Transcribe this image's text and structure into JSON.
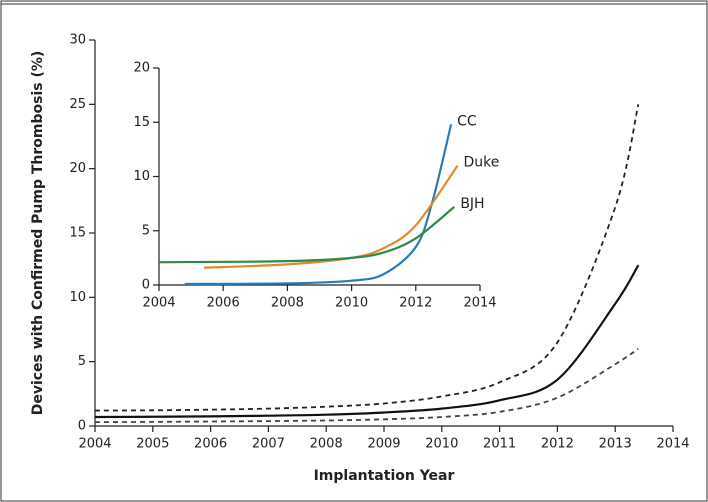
{
  "chart_data": [
    {
      "type": "line",
      "xlabel": "Implantation Year",
      "ylabel": "Devices with Confirmed Pump Thrombosis (%)",
      "xlim": [
        2004,
        2014
      ],
      "xticks": [
        2004,
        2005,
        2006,
        2007,
        2008,
        2009,
        2010,
        2011,
        2012,
        2013,
        2014
      ],
      "ylim": [
        0,
        30
      ],
      "yticks": [
        0,
        5,
        10,
        15,
        20,
        25,
        30
      ],
      "x": [
        2004,
        2005,
        2006,
        2007,
        2008,
        2009,
        2010,
        2011,
        2012,
        2013,
        2013.4
      ],
      "series": [
        {
          "color": "#111111",
          "dashed": false,
          "values": [
            0.7,
            0.72,
            0.75,
            0.8,
            0.88,
            1.05,
            1.35,
            2.0,
            3.6,
            9.5,
            12.5
          ]
        },
        {
          "color": "#222222",
          "dashed": true,
          "values": [
            1.2,
            1.22,
            1.27,
            1.35,
            1.5,
            1.75,
            2.3,
            3.4,
            6.5,
            17,
            25
          ]
        },
        {
          "color": "#444444",
          "dashed": true,
          "values": [
            0.3,
            0.32,
            0.35,
            0.38,
            0.43,
            0.52,
            0.7,
            1.1,
            2.2,
            4.8,
            6.0
          ]
        }
      ]
    },
    {
      "type": "line",
      "xlim": [
        2004,
        2014
      ],
      "xticks": [
        2004,
        2006,
        2008,
        2010,
        2012,
        2014
      ],
      "ylim": [
        0,
        20
      ],
      "yticks": [
        0,
        5,
        10,
        15,
        20
      ],
      "series": [
        {
          "name": "CC",
          "color": "#2b7bb9",
          "x": [
            2004.8,
            2008,
            2010,
            2011,
            2012,
            2012.5,
            2013.1
          ],
          "values": [
            0.1,
            0.15,
            0.4,
            1.0,
            3.5,
            7.5,
            14.8
          ]
        },
        {
          "name": "Duke",
          "color": "#e08a2c",
          "x": [
            2005.4,
            2008,
            2010,
            2011,
            2012,
            2013.3
          ],
          "values": [
            1.6,
            1.9,
            2.5,
            3.4,
            5.5,
            11
          ]
        },
        {
          "name": "BJH",
          "color": "#2e8b4a",
          "x": [
            2004,
            2008,
            2010,
            2011,
            2012,
            2013.2
          ],
          "values": [
            2.1,
            2.2,
            2.5,
            3.0,
            4.3,
            7.2
          ]
        }
      ]
    }
  ]
}
